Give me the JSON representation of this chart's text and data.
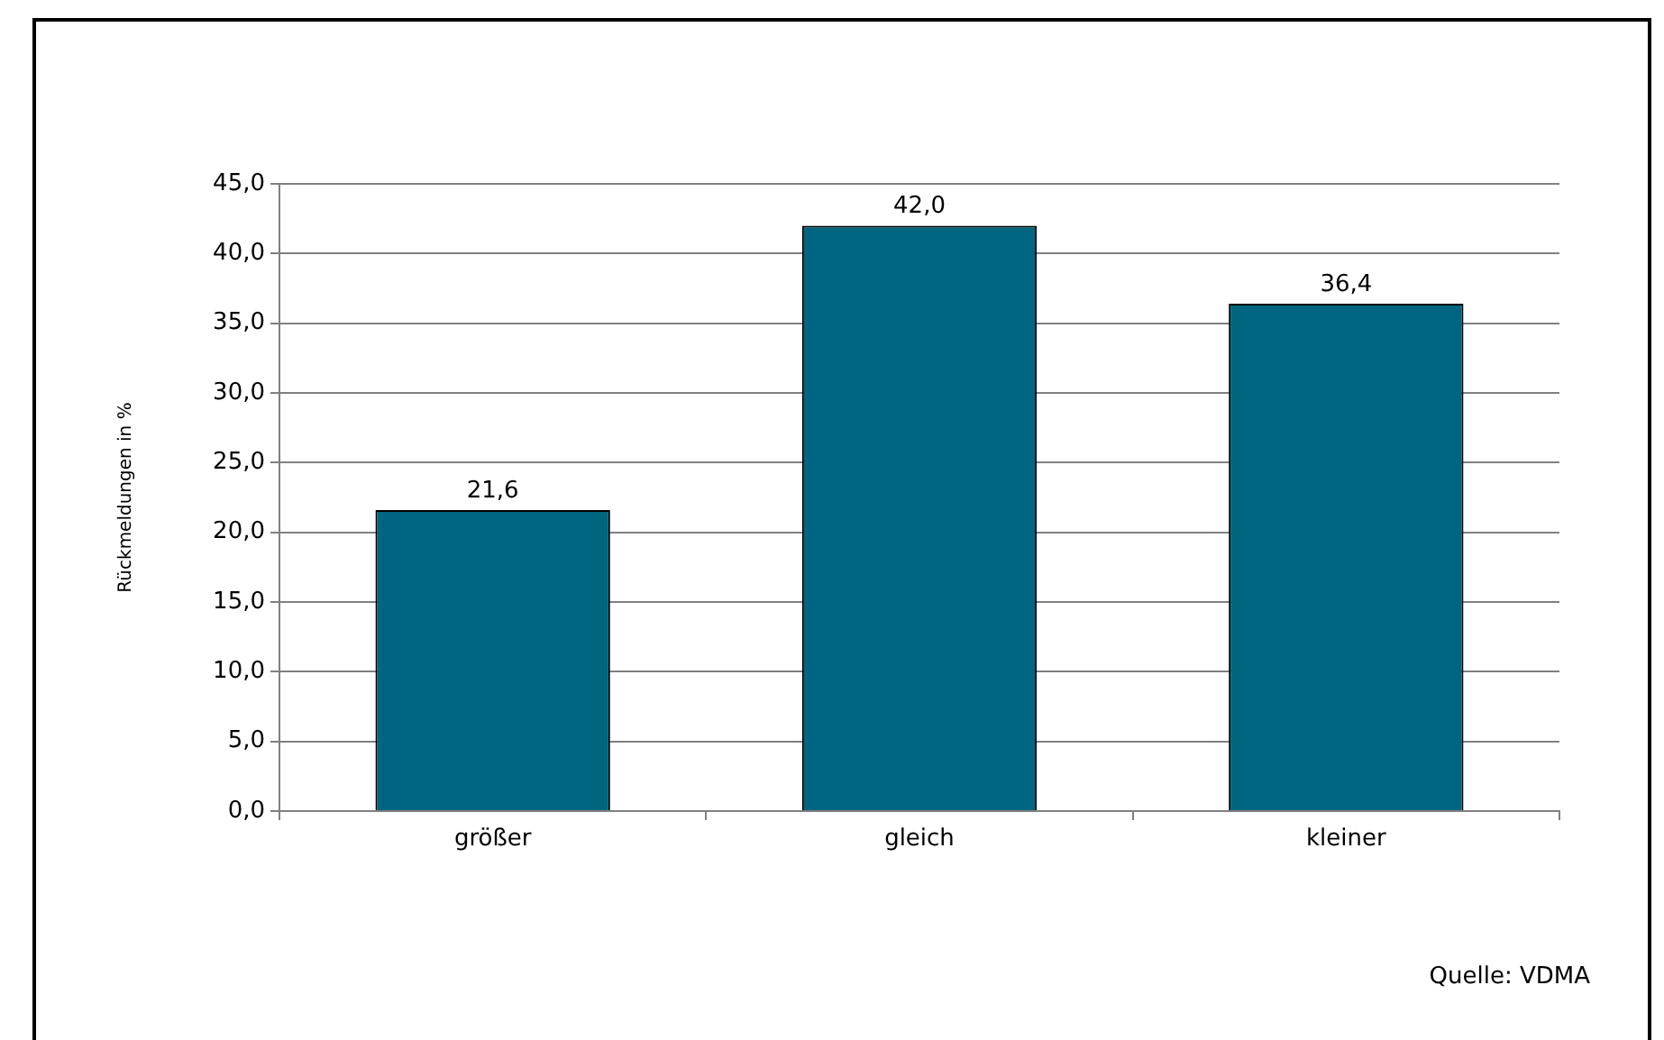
{
  "chart_data": {
    "type": "bar",
    "ylabel": "Rückmeldungen in %",
    "categories": [
      "größer",
      "gleich",
      "kleiner"
    ],
    "values": [
      21.6,
      42.0,
      36.4
    ],
    "value_labels": [
      "21,6",
      "42,0",
      "36,4"
    ],
    "color": "#006580",
    "ylim": [
      0,
      45
    ],
    "yticks": [
      {
        "value": 0,
        "label": "0,0"
      },
      {
        "value": 5,
        "label": "5,0"
      },
      {
        "value": 10,
        "label": "10,0"
      },
      {
        "value": 15,
        "label": "15,0"
      },
      {
        "value": 20,
        "label": "20,0"
      },
      {
        "value": 25,
        "label": "25,0"
      },
      {
        "value": 30,
        "label": "30,0"
      },
      {
        "value": 35,
        "label": "35,0"
      },
      {
        "value": 40,
        "label": "40,0"
      },
      {
        "value": 45,
        "label": "45,0"
      }
    ],
    "grid": "y",
    "legend": false,
    "annotations": [
      "Quelle: VDMA"
    ]
  }
}
